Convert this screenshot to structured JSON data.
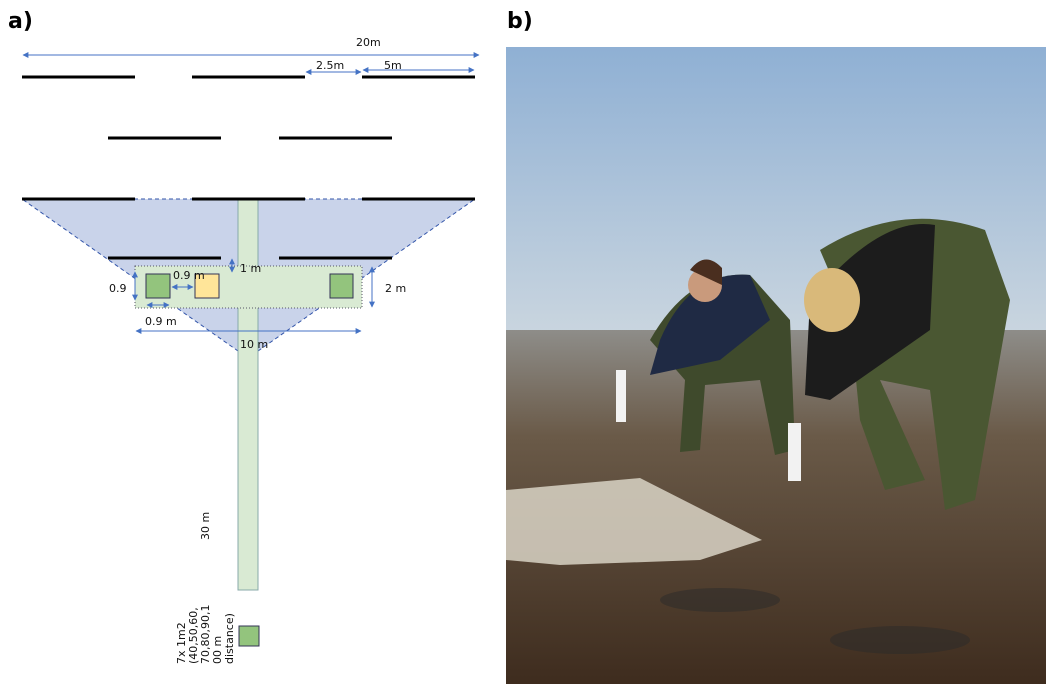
{
  "panel_a": {
    "label": "a)",
    "dimensions": {
      "total_width": "20m",
      "gap": "2.5m",
      "line_length": "5m",
      "offset": "1 m",
      "square_gap": "0.9 m",
      "square_height": "0.9",
      "plot_height": "2 m",
      "square_width": "0.9 m",
      "plot_width": "10 m",
      "transect_length": "30 m"
    },
    "note_lines": [
      "7x 1m2",
      "(40,50,60,",
      "70,80,90,1",
      "00 m",
      "distance)"
    ]
  },
  "panel_b": {
    "label": "b)"
  }
}
